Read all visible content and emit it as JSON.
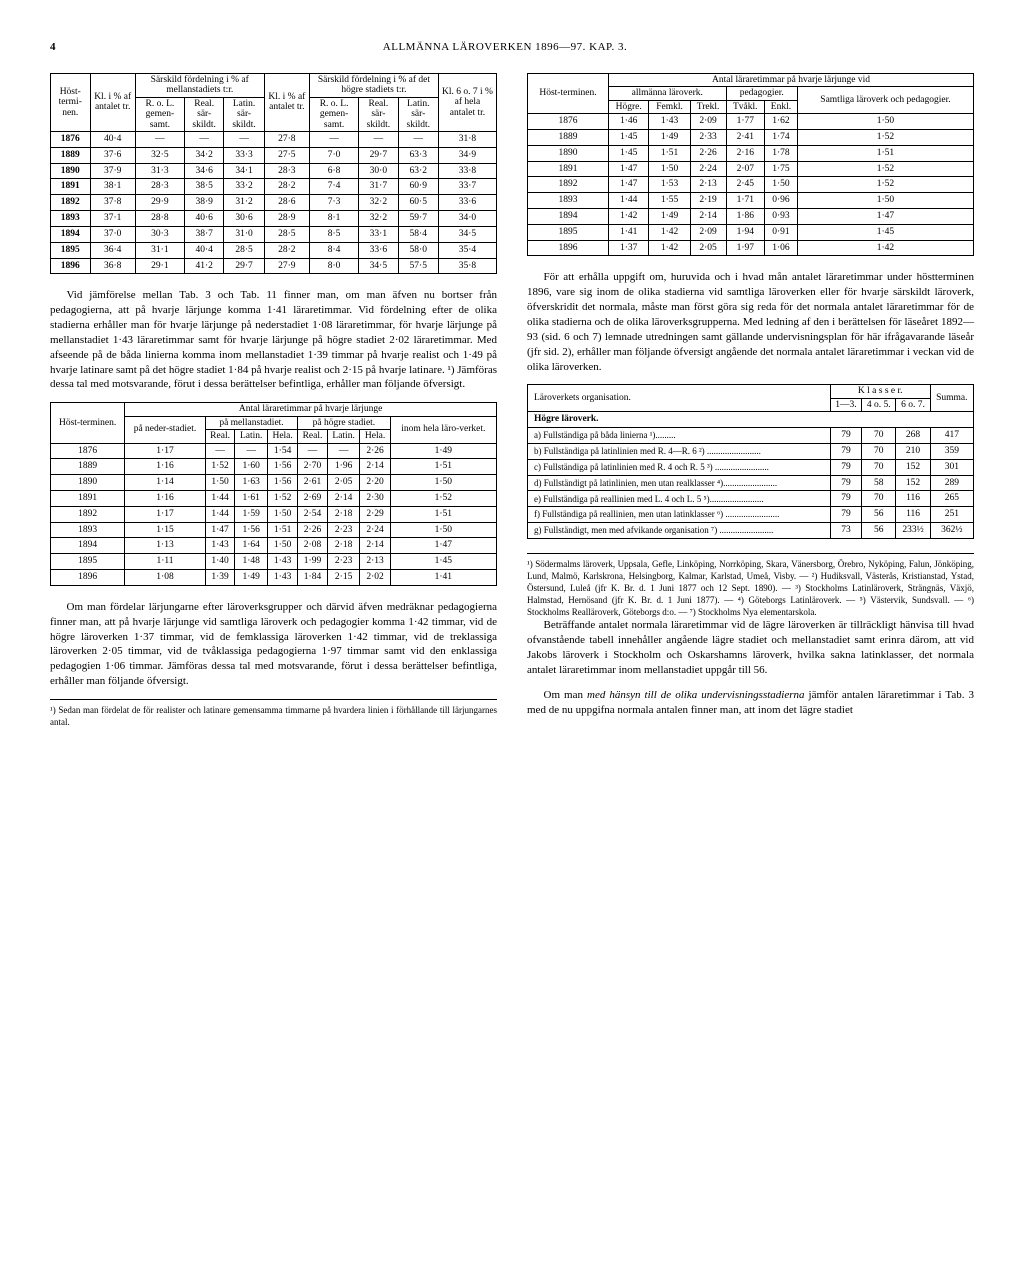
{
  "page_number": "4",
  "running_head": "ALLMÄNNA LÄROVERKEN 1896—97. KAP. 3.",
  "table1": {
    "corner1": "Höst-termi-nen.",
    "col_kl": "Kl. i % af antalet tr.",
    "group1": "Särskild fördelning i % af mellanstadiets t:r.",
    "g1a": "R. o. L. gemen-samt.",
    "g1b": "Real. sär-skildt.",
    "g1c": "Latin. sär-skildt.",
    "col_kl2": "Kl. i % af antalet tr.",
    "group2": "Särskild fördelning i % af det högre stadiets t:r.",
    "g2a": "R. o. L. gemen-samt.",
    "g2b": "Real. sär-skildt.",
    "g2c": "Latin. sär-skildt.",
    "col_last": "Kl. 6 o. 7 i % af hela antalet tr.",
    "rows": [
      [
        "1876",
        "40·4",
        "—",
        "—",
        "—",
        "27·8",
        "—",
        "—",
        "—",
        "31·8"
      ],
      [
        "1889",
        "37·6",
        "32·5",
        "34·2",
        "33·3",
        "27·5",
        "7·0",
        "29·7",
        "63·3",
        "34·9"
      ],
      [
        "1890",
        "37·9",
        "31·3",
        "34·6",
        "34·1",
        "28·3",
        "6·8",
        "30·0",
        "63·2",
        "33·8"
      ],
      [
        "1891",
        "38·1",
        "28·3",
        "38·5",
        "33·2",
        "28·2",
        "7·4",
        "31·7",
        "60·9",
        "33·7"
      ],
      [
        "1892",
        "37·8",
        "29·9",
        "38·9",
        "31·2",
        "28·6",
        "7·3",
        "32·2",
        "60·5",
        "33·6"
      ],
      [
        "1893",
        "37·1",
        "28·8",
        "40·6",
        "30·6",
        "28·9",
        "8·1",
        "32·2",
        "59·7",
        "34·0"
      ],
      [
        "1894",
        "37·0",
        "30·3",
        "38·7",
        "31·0",
        "28·5",
        "8·5",
        "33·1",
        "58·4",
        "34·5"
      ],
      [
        "1895",
        "36·4",
        "31·1",
        "40·4",
        "28·5",
        "28·2",
        "8·4",
        "33·6",
        "58·0",
        "35·4"
      ],
      [
        "1896",
        "36·8",
        "29·1",
        "41·2",
        "29·7",
        "27·9",
        "8·0",
        "34·5",
        "57·5",
        "35·8"
      ]
    ]
  },
  "para1": "Vid jämförelse mellan Tab. 3 och Tab. 11 finner man, om man äfven nu bortser från pedagogierna, att på hvarje lärjunge komma 1·41 läraretimmar. Vid fördelning efter de olika stadierna erhåller man för hvarje lärjunge på nederstadiet 1·08 läraretimmar, för hvarje lärjunge på mellanstadiet 1·43 läraretimmar samt för hvarje lärjunge på högre stadiet 2·02 läraretimmar. Med afseende på de båda linierna komma inom mellanstadiet 1·39 timmar på hvarje realist och 1·49 på hvarje latinare samt på det högre stadiet 1·84 på hvarje realist och 2·15 på hvarje latinare. ¹) Jämföras dessa tal med motsvarande, förut i dessa berättelser befintliga, erhåller man följande öfversigt.",
  "table2": {
    "corner": "Höst-terminen.",
    "top": "Antal läraretimmar på hvarje lärjunge",
    "c1": "på neder-stadiet.",
    "g1": "på mellanstadiet.",
    "g1a": "Real.",
    "g1b": "Latin.",
    "g1c": "Hela.",
    "g2": "på högre stadiet.",
    "g2a": "Real.",
    "g2b": "Latin.",
    "g2c": "Hela.",
    "last": "inom hela läro-verket.",
    "rows": [
      [
        "1876",
        "1·17",
        "—",
        "—",
        "1·54",
        "—",
        "—",
        "2·26",
        "1·49"
      ],
      [
        "1889",
        "1·16",
        "1·52",
        "1·60",
        "1·56",
        "2·70",
        "1·96",
        "2·14",
        "1·51"
      ],
      [
        "1890",
        "1·14",
        "1·50",
        "1·63",
        "1·56",
        "2·61",
        "2·05",
        "2·20",
        "1·50"
      ],
      [
        "1891",
        "1·16",
        "1·44",
        "1·61",
        "1·52",
        "2·69",
        "2·14",
        "2·30",
        "1·52"
      ],
      [
        "1892",
        "1·17",
        "1·44",
        "1·59",
        "1·50",
        "2·54",
        "2·18",
        "2·29",
        "1·51"
      ],
      [
        "1893",
        "1·15",
        "1·47",
        "1·56",
        "1·51",
        "2·26",
        "2·23",
        "2·24",
        "1·50"
      ],
      [
        "1894",
        "1·13",
        "1·43",
        "1·64",
        "1·50",
        "2·08",
        "2·18",
        "2·14",
        "1·47"
      ],
      [
        "1895",
        "1·11",
        "1·40",
        "1·48",
        "1·43",
        "1·99",
        "2·23",
        "2·13",
        "1·45"
      ],
      [
        "1896",
        "1·08",
        "1·39",
        "1·49",
        "1·43",
        "1·84",
        "2·15",
        "2·02",
        "1·41"
      ]
    ]
  },
  "para2": "Om man fördelar lärjungarne efter läroverksgrupper och därvid äfven medräknar pedagogierna finner man, att på hvarje lärjunge vid samtliga läroverk och pedagogier komma 1·42 timmar, vid de högre läroverken 1·37 timmar, vid de femklassiga läroverken 1·42 timmar, vid de treklassiga läroverken 2·05 timmar, vid de tvåklassiga pedagogierna 1·97 timmar samt vid den enklassiga pedagogien 1·06 timmar. Jämföras dessa tal med motsvarande, förut i dessa berättelser befintliga, erhåller man följande öfversigt.",
  "footnote_left": "¹) Sedan man fördelat de för realister och latinare gemensamma timmarne på hvardera linien i förhållande till lärjungarnes antal.",
  "table3": {
    "corner": "Höst-terminen.",
    "top": "Antal läraretimmar på hvarje lärjunge vid",
    "g1": "allmänna läroverk.",
    "g1a": "Högre.",
    "g1b": "Femkl.",
    "g1c": "Trekl.",
    "g2": "pedagogier.",
    "g2a": "Tvåkl.",
    "g2b": "Enkl.",
    "last": "Samtliga läroverk och pedagogier.",
    "rows": [
      [
        "1876",
        "1·46",
        "1·43",
        "2·09",
        "1·77",
        "1·62",
        "1·50"
      ],
      [
        "1889",
        "1·45",
        "1·49",
        "2·33",
        "2·41",
        "1·74",
        "1·52"
      ],
      [
        "1890",
        "1·45",
        "1·51",
        "2·26",
        "2·16",
        "1·78",
        "1·51"
      ],
      [
        "1891",
        "1·47",
        "1·50",
        "2·24",
        "2·07",
        "1·75",
        "1·52"
      ],
      [
        "1892",
        "1·47",
        "1·53",
        "2·13",
        "2·45",
        "1·50",
        "1·52"
      ],
      [
        "1893",
        "1·44",
        "1·55",
        "2·19",
        "1·71",
        "0·96",
        "1·50"
      ],
      [
        "1894",
        "1·42",
        "1·49",
        "2·14",
        "1·86",
        "0·93",
        "1·47"
      ],
      [
        "1895",
        "1·41",
        "1·42",
        "2·09",
        "1·94",
        "0·91",
        "1·45"
      ],
      [
        "1896",
        "1·37",
        "1·42",
        "2·05",
        "1·97",
        "1·06",
        "1·42"
      ]
    ]
  },
  "para3": "För att erhålla uppgift om, huruvida och i hvad mån antalet läraretimmar under höstterminen 1896, vare sig inom de olika stadierna vid samtliga läroverken eller för hvarje särskildt läroverk, öfverskridit det normala, måste man först göra sig reda för det normala antalet läraretimmar för de olika stadierna och de olika läroverksgrupperna. Med ledning af den i berättelsen för läseåret 1892—93 (sid. 6 och 7) lemnade utredningen samt gällande undervisningsplan för här ifrågavarande läseår (jfr sid. 2), erhåller man följande öfversigt angående det normala antalet läraretimmar i veckan vid de olika läroverken.",
  "table4": {
    "h1": "Läroverkets organisation.",
    "h2": "K l a s s e r.",
    "c1": "1—3.",
    "c2": "4 o. 5.",
    "c3": "6 o. 7.",
    "sum": "Summa.",
    "section": "Högre läroverk.",
    "rows": [
      [
        "a) Fullständiga på båda linierna ¹).........",
        "79",
        "70",
        "268",
        "417"
      ],
      [
        "b) Fullständiga på latinlinien med R. 4—R. 6 ²) ........................",
        "79",
        "70",
        "210",
        "359"
      ],
      [
        "c) Fullständiga på latinlinien med R. 4 och R. 5 ³) ........................",
        "79",
        "70",
        "152",
        "301"
      ],
      [
        "d) Fullständigt på latinlinien, men utan realklasser ⁴)........................",
        "79",
        "58",
        "152",
        "289"
      ],
      [
        "e) Fullständiga på reallinien med L. 4 och L. 5 ⁵)........................",
        "79",
        "70",
        "116",
        "265"
      ],
      [
        "f) Fullständiga på reallinien, men utan latinklasser ⁶) ........................",
        "79",
        "56",
        "116",
        "251"
      ],
      [
        "g) Fullständigt, men med afvikande organisation ⁷) ........................",
        "73",
        "56",
        "233½",
        "362½"
      ]
    ]
  },
  "footnote_right": "¹) Södermalms läroverk, Uppsala, Gefle, Linköping, Norrköping, Skara, Vänersborg, Örebro, Nyköping, Falun, Jönköping, Lund, Malmö, Karlskrona, Helsingborg, Kalmar, Karlstad, Umeå, Visby. — ²) Hudiksvall, Västerås, Kristianstad, Ystad, Östersund, Luleå (jfr K. Br. d. 1 Juni 1877 och 12 Sept. 1890). — ³) Stockholms Latinläroverk, Strängnäs, Växjö, Halmstad, Hernösand (jfr K. Br. d. 1 Juni 1877). — ⁴) Göteborgs Latinläroverk. — ⁵) Västervik, Sundsvall. — ⁶) Stockholms Realläroverk, Göteborgs d:o. — ⁷) Stockholms Nya elementarskola.",
  "para4": "Beträffande antalet normala läraretimmar vid de lägre läroverken är tillräckligt hänvisa till hvad ofvanstående tabell innehåller angående lägre stadiet och mellanstadiet samt erinra därom, att vid Jakobs läroverk i Stockholm och Oskarshamns läroverk, hvilka sakna latinklasser, det normala antalet läraretimmar inom mellanstadiet uppgår till 56.",
  "para5a": "Om man ",
  "para5b": "med hänsyn till de olika undervisningsstadierna",
  "para5c": " jämför antalen läraretimmar i Tab. 3 med de nu uppgifna normala antalen finner man, att inom det lägre stadiet"
}
